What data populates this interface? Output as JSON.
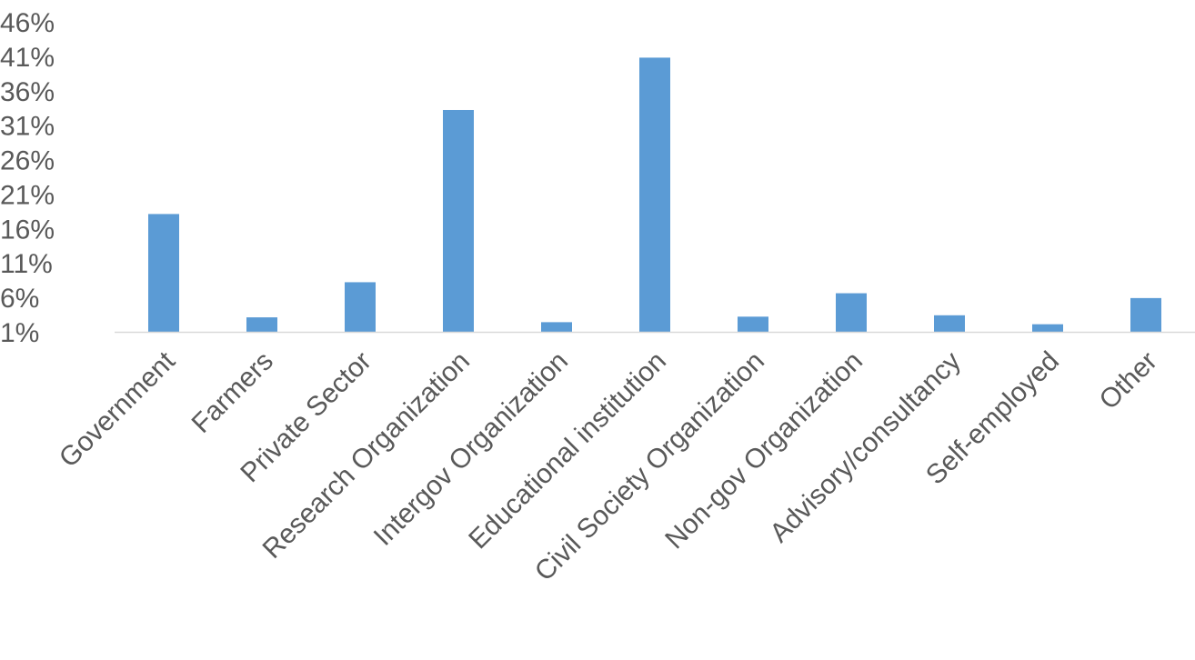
{
  "chart_data": {
    "type": "bar",
    "title": "",
    "xlabel": "",
    "ylabel": "",
    "categories": [
      "Government",
      "Farmers",
      "Private Sector",
      "Research Organization",
      "Intergov Organization",
      "Educational institution",
      "Civil Society Organization",
      "Non-gov Organization",
      "Advisory/consultancy",
      "Self-employed",
      "Other"
    ],
    "values": [
      18.1,
      3.1,
      8.2,
      33.2,
      2.4,
      40.8,
      3.2,
      6.6,
      3.4,
      2.1,
      5.9
    ],
    "ylim": [
      1,
      46
    ],
    "yticks": [
      "1%",
      "6%",
      "11%",
      "16%",
      "21%",
      "26%",
      "31%",
      "36%",
      "41%",
      "46%"
    ],
    "ytick_values": [
      1,
      6,
      11,
      16,
      21,
      26,
      31,
      36,
      41,
      46
    ],
    "bar_color": "#5b9bd5",
    "axis_color": "#d9d9d9",
    "text_color": "#595959",
    "grid": false,
    "legend": "none"
  }
}
